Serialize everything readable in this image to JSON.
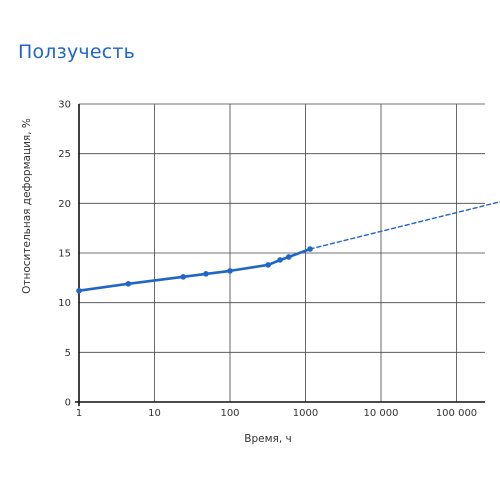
{
  "page": {
    "title": "Ползучесть"
  },
  "chart_data": {
    "type": "line",
    "title": "Ползучесть",
    "xlabel": "Время, ч",
    "ylabel": "Относительная деформация, %",
    "x_scale": "log",
    "xlim": [
      1,
      400000
    ],
    "ylim": [
      0,
      30
    ],
    "grid": true,
    "x_ticks": [
      1,
      10,
      100,
      1000,
      10000,
      100000
    ],
    "x_tick_labels": [
      "1",
      "10",
      "100",
      "1000",
      "10 000",
      "100 000"
    ],
    "y_ticks": [
      0,
      5,
      10,
      15,
      20,
      25,
      30
    ],
    "y_tick_labels": [
      "0",
      "5",
      "10",
      "15",
      "20",
      "25",
      "30"
    ],
    "series": [
      {
        "line_style": "solid",
        "markers": true,
        "color": "#1f66c8",
        "x": [
          1,
          4.5,
          24,
          48,
          100,
          320,
          460,
          600,
          1150
        ],
        "y": [
          11.2,
          11.9,
          12.6,
          12.9,
          13.2,
          13.8,
          14.3,
          14.6,
          15.4
        ]
      },
      {
        "line_style": "dashed",
        "markers": false,
        "color": "#1f66c8",
        "x": [
          1150,
          400000
        ],
        "y": [
          15.4,
          20.2
        ]
      }
    ]
  }
}
